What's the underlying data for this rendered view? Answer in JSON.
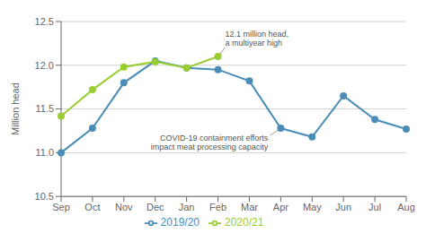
{
  "chart_data": {
    "type": "line",
    "categories": [
      "Sep",
      "Oct",
      "Nov",
      "Dec",
      "Jan",
      "Feb",
      "Mar",
      "Apr",
      "May",
      "Jun",
      "Jul",
      "Aug"
    ],
    "series": [
      {
        "name": "2019/20",
        "color": "#4a8db7",
        "values": [
          11.0,
          11.28,
          11.8,
          12.05,
          11.97,
          11.95,
          11.82,
          11.28,
          11.18,
          11.65,
          11.38,
          11.27
        ]
      },
      {
        "name": "2020/21",
        "color": "#9acd32",
        "values": [
          11.42,
          11.72,
          11.98,
          12.04,
          11.97,
          12.1,
          null,
          null,
          null,
          null,
          null,
          null
        ]
      }
    ],
    "ylabel": "Million head",
    "ylim": [
      10.5,
      12.5
    ],
    "yticks": [
      10.5,
      {
        "value": 11,
        "label": "11.0"
      },
      11.5,
      {
        "value": 12,
        "label": "12.0"
      },
      12.5
    ],
    "grid": true,
    "marker": "circle",
    "legend": "bottom",
    "annotations": [
      {
        "text": "12.1 million head,\na multiyear high",
        "x": "Feb",
        "y": 12.1
      },
      {
        "text": "COVID-19 containment efforts\nimpact meat processing capacity",
        "x": "Apr",
        "y": 11.28
      }
    ]
  }
}
